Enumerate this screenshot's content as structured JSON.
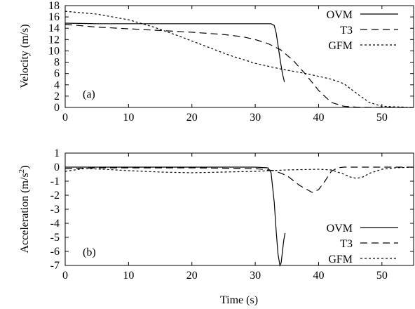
{
  "chart_data": [
    {
      "type": "line",
      "panel_tag": "(a)",
      "xlabel": "",
      "ylabel": "Velocity (m/s)",
      "xlim": [
        0,
        55
      ],
      "ylim": [
        0,
        18
      ],
      "xticks": [
        0,
        10,
        20,
        30,
        40,
        50
      ],
      "yticks": [
        0,
        2,
        4,
        6,
        8,
        10,
        12,
        14,
        16,
        18
      ],
      "grid": false,
      "legend": "top-right",
      "series": [
        {
          "name": "OVM",
          "style": "solid",
          "x": [
            0,
            5,
            10,
            15,
            20,
            25,
            30,
            32.5,
            33.0,
            33.3,
            33.6,
            34.0,
            34.3,
            34.6
          ],
          "y": [
            14.9,
            14.8,
            14.8,
            14.8,
            14.8,
            14.8,
            14.8,
            14.8,
            14.5,
            13.2,
            11.0,
            8.0,
            6.0,
            4.5
          ]
        },
        {
          "name": "T3",
          "style": "dashed",
          "x": [
            0,
            5,
            10,
            15,
            20,
            25,
            28,
            30,
            32,
            34,
            36,
            38,
            40,
            42,
            44,
            46,
            50,
            55
          ],
          "y": [
            14.7,
            14.2,
            13.9,
            13.6,
            13.3,
            12.9,
            12.5,
            12.0,
            11.3,
            10.2,
            8.3,
            5.8,
            3.0,
            0.9,
            0.2,
            0.05,
            0.0,
            0.0
          ]
        },
        {
          "name": "GFM",
          "style": "dotted",
          "x": [
            0,
            5,
            10,
            14,
            18,
            22,
            26,
            30,
            34,
            38,
            40,
            42,
            44,
            46,
            48,
            50,
            55
          ],
          "y": [
            17.0,
            16.5,
            15.5,
            14.2,
            12.6,
            10.9,
            9.2,
            7.8,
            6.8,
            6.0,
            5.5,
            5.0,
            4.2,
            2.5,
            0.9,
            0.2,
            0.0
          ]
        }
      ]
    },
    {
      "type": "line",
      "panel_tag": "(b)",
      "xlabel": "Time (s)",
      "ylabel": "Acceleration (m/s",
      "ylabel_sup": "2",
      "ylabel_close": ")",
      "xlim": [
        0,
        55
      ],
      "ylim": [
        -7,
        1
      ],
      "xticks": [
        0,
        10,
        20,
        30,
        40,
        50
      ],
      "yticks": [
        1,
        0,
        -1,
        -2,
        -3,
        -4,
        -5,
        -6,
        -7
      ],
      "grid": false,
      "legend": "bottom-right",
      "series": [
        {
          "name": "OVM",
          "style": "solid",
          "x": [
            0,
            5,
            10,
            20,
            30,
            32,
            32.5,
            33.0,
            33.3,
            33.6,
            33.9,
            34.1,
            34.3,
            34.5,
            34.7
          ],
          "y": [
            0.0,
            0.0,
            0.0,
            0.0,
            0.0,
            -0.05,
            -0.4,
            -2.5,
            -4.5,
            -6.2,
            -7.0,
            -6.8,
            -6.0,
            -5.2,
            -4.7
          ]
        },
        {
          "name": "T3",
          "style": "dashed",
          "x": [
            0,
            5,
            10,
            20,
            30,
            33,
            35,
            37,
            39,
            40,
            41,
            42,
            43,
            44,
            46,
            50,
            55
          ],
          "y": [
            -0.1,
            -0.05,
            -0.05,
            -0.05,
            -0.1,
            -0.25,
            -0.6,
            -1.3,
            -1.8,
            -1.6,
            -1.0,
            -0.3,
            -0.05,
            0.0,
            0.0,
            0.0,
            0.0
          ]
        },
        {
          "name": "GFM",
          "style": "dotted",
          "x": [
            0,
            3,
            6,
            10,
            15,
            20,
            25,
            30,
            35,
            40,
            42,
            44,
            45,
            46,
            47,
            48,
            50,
            52,
            55
          ],
          "y": [
            -0.3,
            -0.1,
            -0.15,
            -0.25,
            -0.35,
            -0.4,
            -0.35,
            -0.3,
            -0.2,
            -0.15,
            -0.2,
            -0.5,
            -0.7,
            -0.8,
            -0.7,
            -0.45,
            -0.15,
            -0.05,
            0.0
          ]
        }
      ]
    }
  ]
}
